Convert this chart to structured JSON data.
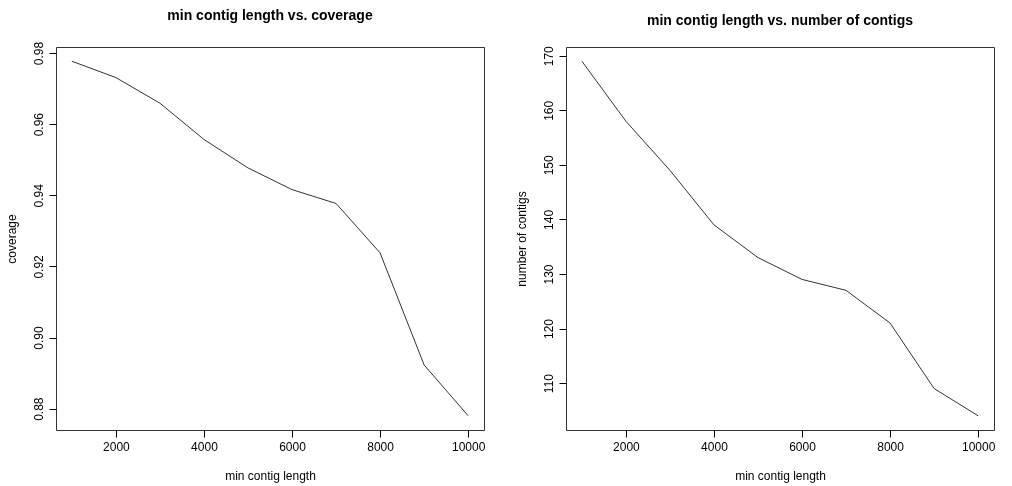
{
  "chart_data": [
    {
      "type": "line",
      "title": "min contig length vs. coverage",
      "xlabel": "min contig length",
      "ylabel": "coverage",
      "x": [
        1000,
        2000,
        3000,
        4000,
        5000,
        6000,
        7000,
        8000,
        9000,
        10000
      ],
      "series": [
        {
          "color": "#333333",
          "values": [
            0.9777,
            0.9731,
            0.9659,
            0.9557,
            0.9477,
            0.9416,
            0.9377,
            0.9238,
            0.8923,
            0.878
          ]
        }
      ],
      "xlim": [
        640,
        10360
      ],
      "ylim": [
        0.874,
        0.9817
      ],
      "xticks": [
        2000,
        4000,
        6000,
        8000,
        10000
      ],
      "yticks": [
        {
          "value": 0.88,
          "label": "0.88"
        },
        {
          "value": 0.9,
          "label": "0.90"
        },
        {
          "value": 0.92,
          "label": "0.92"
        },
        {
          "value": 0.94,
          "label": "0.94"
        },
        {
          "value": 0.96,
          "label": "0.96"
        },
        {
          "value": 0.98,
          "label": "0.98"
        }
      ]
    },
    {
      "type": "line",
      "title": "min contig length vs. number of contigs",
      "xlabel": "min contig length",
      "ylabel": "number of contigs",
      "x": [
        1000,
        2000,
        3000,
        4000,
        5000,
        6000,
        7000,
        8000,
        9000,
        10000
      ],
      "series": [
        {
          "color": "#333333",
          "values": [
            169,
            158,
            149,
            139,
            133,
            129,
            127,
            121,
            109,
            104
          ]
        }
      ],
      "xlim": [
        640,
        10360
      ],
      "ylim": [
        101.4,
        171.6
      ],
      "xticks": [
        2000,
        4000,
        6000,
        8000,
        10000
      ],
      "yticks": [
        110,
        120,
        130,
        140,
        150,
        160,
        170
      ]
    }
  ]
}
